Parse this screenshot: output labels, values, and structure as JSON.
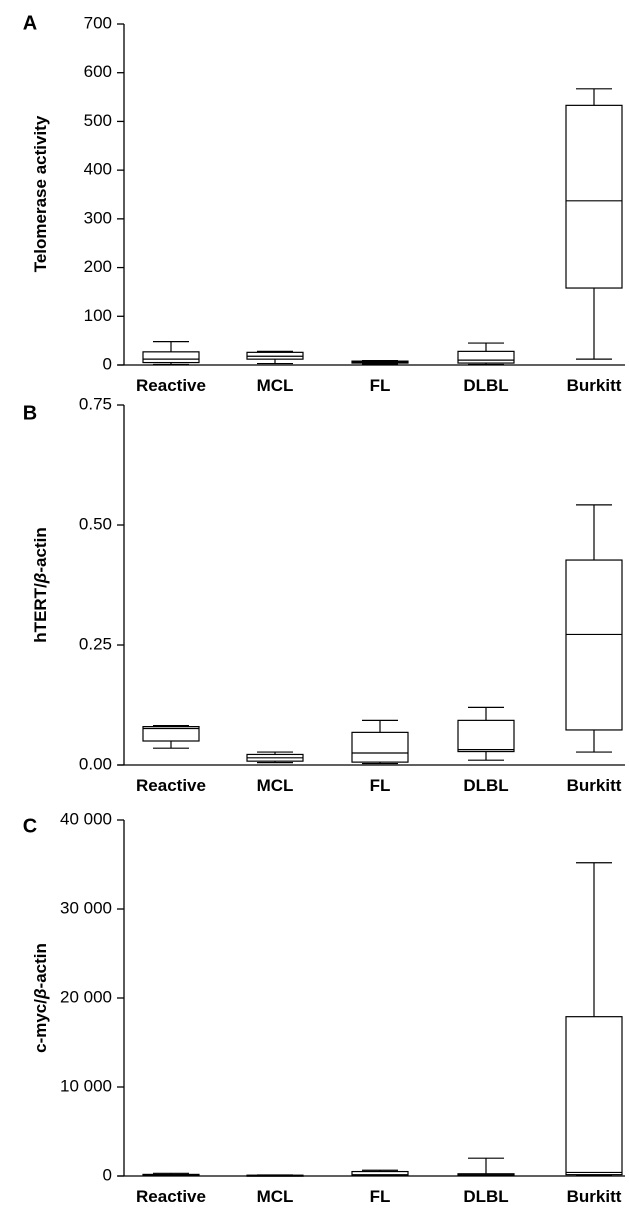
{
  "chart_data": [
    {
      "type": "box",
      "panel": "A",
      "ylabel": "Telomerase activity",
      "ylim": [
        0,
        700
      ],
      "yticks": [
        "0",
        "100",
        "200",
        "300",
        "400",
        "500",
        "600",
        "700"
      ],
      "categories": [
        "Reactive",
        "MCL",
        "FL",
        "DLBL",
        "Burkitt"
      ],
      "boxes": [
        {
          "min": 1,
          "q1": 5,
          "median": 12,
          "q3": 27,
          "max": 48
        },
        {
          "min": 3,
          "q1": 12,
          "median": 18,
          "q3": 26,
          "max": 28
        },
        {
          "min": 2,
          "q1": 4,
          "median": 6,
          "q3": 8,
          "max": 9
        },
        {
          "min": 1,
          "q1": 4,
          "median": 10,
          "q3": 28,
          "max": 45
        },
        {
          "min": 12,
          "q1": 158,
          "median": 337,
          "q3": 533,
          "max": 567
        }
      ]
    },
    {
      "type": "box",
      "panel": "B",
      "ylabel": "hTERT/β-actin",
      "ylabel_parts": [
        "hTERT/",
        "β",
        "-actin"
      ],
      "ylim": [
        0,
        0.75
      ],
      "yticks": [
        "0.00",
        "0.25",
        "0.50",
        "0.75"
      ],
      "categories": [
        "Reactive",
        "MCL",
        "FL",
        "DLBL",
        "Burkitt"
      ],
      "boxes": [
        {
          "min": 0.035,
          "q1": 0.05,
          "median": 0.076,
          "q3": 0.08,
          "max": 0.082
        },
        {
          "min": 0.005,
          "q1": 0.008,
          "median": 0.015,
          "q3": 0.022,
          "max": 0.027
        },
        {
          "min": 0.003,
          "q1": 0.006,
          "median": 0.025,
          "q3": 0.068,
          "max": 0.093
        },
        {
          "min": 0.01,
          "q1": 0.028,
          "median": 0.032,
          "q3": 0.093,
          "max": 0.12
        },
        {
          "min": 0.027,
          "q1": 0.073,
          "median": 0.272,
          "q3": 0.427,
          "max": 0.542
        }
      ]
    },
    {
      "type": "box",
      "panel": "C",
      "ylabel": "c-myc/β-actin",
      "ylabel_parts": [
        "c-myc/",
        "β",
        "-actin"
      ],
      "ylim": [
        0,
        40000
      ],
      "yticks": [
        "0",
        "10 000",
        "20 000",
        "30 000",
        "40 000"
      ],
      "categories": [
        "Reactive",
        "MCL",
        "FL",
        "DLBL",
        "Burkitt"
      ],
      "boxes": [
        {
          "min": 20,
          "q1": 60,
          "median": 120,
          "q3": 180,
          "max": 300
        },
        {
          "min": 10,
          "q1": 30,
          "median": 60,
          "q3": 90,
          "max": 120
        },
        {
          "min": 20,
          "q1": 60,
          "median": 150,
          "q3": 500,
          "max": 650
        },
        {
          "min": 20,
          "q1": 80,
          "median": 150,
          "q3": 250,
          "max": 2000
        },
        {
          "min": 50,
          "q1": 150,
          "median": 400,
          "q3": 17900,
          "max": 35200
        }
      ]
    }
  ]
}
